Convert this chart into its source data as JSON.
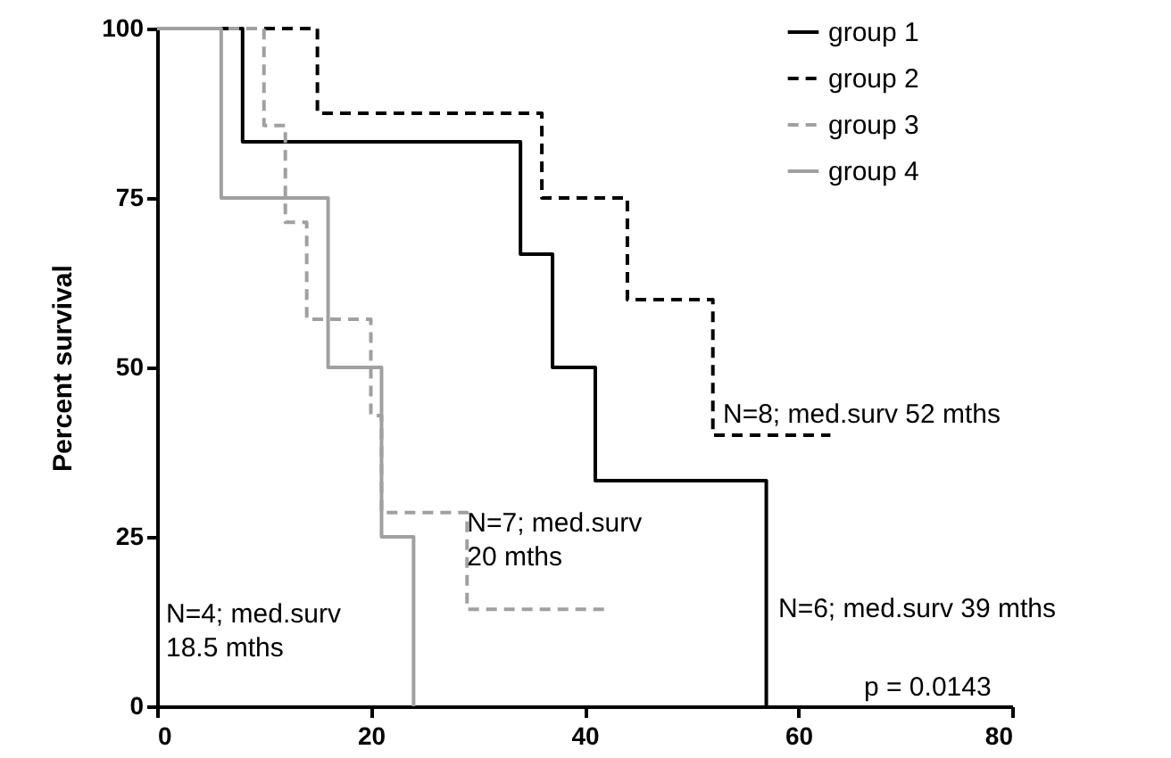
{
  "chart_data": {
    "type": "step",
    "ylabel": "Percent survival",
    "xlim": [
      0,
      80
    ],
    "xticks": [
      0,
      20,
      40,
      60,
      80
    ],
    "ylim": [
      0,
      100
    ],
    "yticks": [
      0,
      25,
      50,
      75,
      100
    ],
    "grid": false,
    "legend": "top right",
    "marker": "none",
    "series": [
      {
        "name": "group 1",
        "color": "#000000",
        "line_style": "solid",
        "x": [
          0,
          8,
          34,
          37,
          41,
          57
        ],
        "values": [
          100,
          83.3,
          66.7,
          50,
          33.3,
          0
        ]
      },
      {
        "name": "group 2",
        "color": "#000000",
        "line_style": "dashed",
        "x": [
          0,
          15,
          36,
          44,
          52,
          63
        ],
        "values": [
          100,
          87.5,
          75,
          60,
          40,
          40
        ]
      },
      {
        "name": "group 3",
        "color": "#a0a0a0",
        "line_style": "dashed",
        "x": [
          0,
          10,
          12,
          14,
          20,
          21,
          29,
          42
        ],
        "values": [
          100,
          85.7,
          71.4,
          57.1,
          42.9,
          28.6,
          14.3,
          14.3
        ]
      },
      {
        "name": "group 4",
        "color": "#a0a0a0",
        "line_style": "solid",
        "x": [
          0,
          6,
          16,
          21,
          24
        ],
        "values": [
          100,
          75,
          50,
          25,
          0
        ]
      }
    ],
    "annotations": [
      "N=8; med.surv 52 mths",
      {
        "text": "N=7; med.surv\n20 mths",
        "x": 29,
        "y": 29
      },
      "N=4; med.surv\n18.5 mths",
      "N=6; med.surv 39 mths",
      "p = 0.0143"
    ]
  }
}
